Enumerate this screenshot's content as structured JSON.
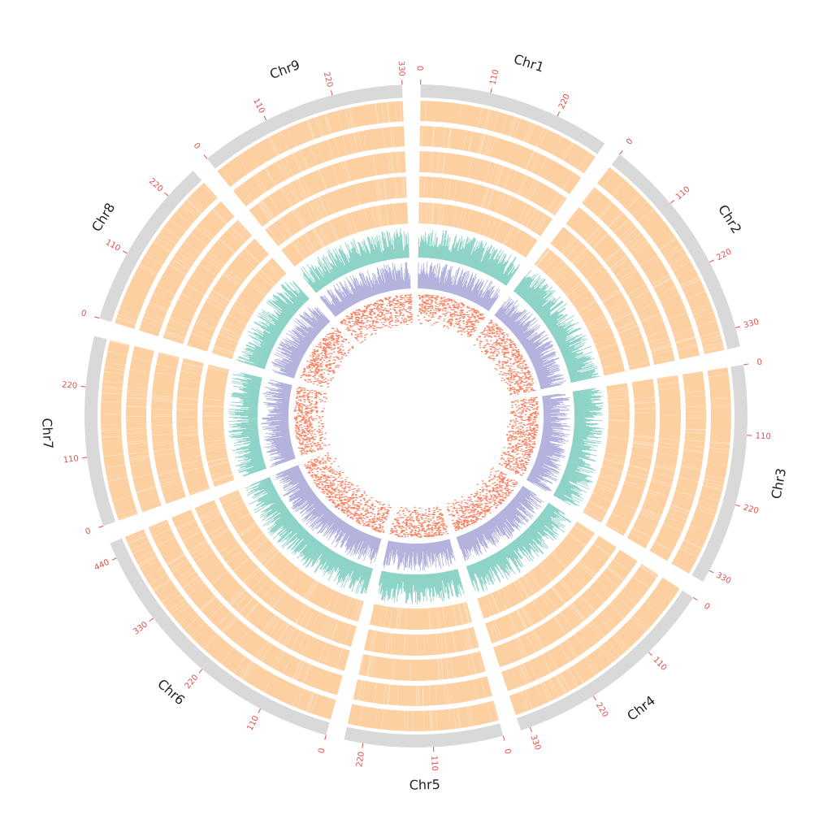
{
  "colors": {
    "ideogram": "#d9d9d9",
    "tick": "#e0504a",
    "heatmap": "#fdd0a2",
    "bars_outer": "#8dd3c7",
    "bars_inner": "#b3b3de",
    "scatter": "#fb8060"
  },
  "chart_data": {
    "type": "circos",
    "title": "",
    "units": "Mb",
    "direction": "clockwise",
    "chromosomes": [
      {
        "name": "Chr1",
        "length": 305,
        "ticks": [
          "0",
          "110",
          "220"
        ]
      },
      {
        "name": "Chr2",
        "length": 360,
        "ticks": [
          "0",
          "110",
          "220",
          "330"
        ]
      },
      {
        "name": "Chr3",
        "length": 350,
        "ticks": [
          "0",
          "110",
          "220",
          "330"
        ]
      },
      {
        "name": "Chr4",
        "length": 345,
        "ticks": [
          "0",
          "110",
          "220",
          "330"
        ]
      },
      {
        "name": "Chr5",
        "length": 250,
        "ticks": [
          "0",
          "110",
          "220"
        ]
      },
      {
        "name": "Chr6",
        "length": 465,
        "ticks": [
          "0",
          "110",
          "220",
          "330",
          "440"
        ]
      },
      {
        "name": "Chr7",
        "length": 300,
        "ticks": [
          "0",
          "110",
          "220"
        ]
      },
      {
        "name": "Chr8",
        "length": 275,
        "ticks": [
          "0",
          "110",
          "220"
        ]
      },
      {
        "name": "Chr9",
        "length": 330,
        "ticks": [
          "0",
          "110",
          "220",
          "330"
        ]
      }
    ],
    "tracks": [
      {
        "kind": "heatmap",
        "rings": 5,
        "color_key": "heatmap"
      },
      {
        "kind": "bar",
        "color_key": "bars_outer",
        "value_range": [
          0,
          1
        ]
      },
      {
        "kind": "bar",
        "color_key": "bars_inner",
        "value_range": [
          0,
          1
        ]
      },
      {
        "kind": "scatter",
        "color_key": "scatter",
        "value_range": [
          0,
          1
        ]
      }
    ]
  }
}
